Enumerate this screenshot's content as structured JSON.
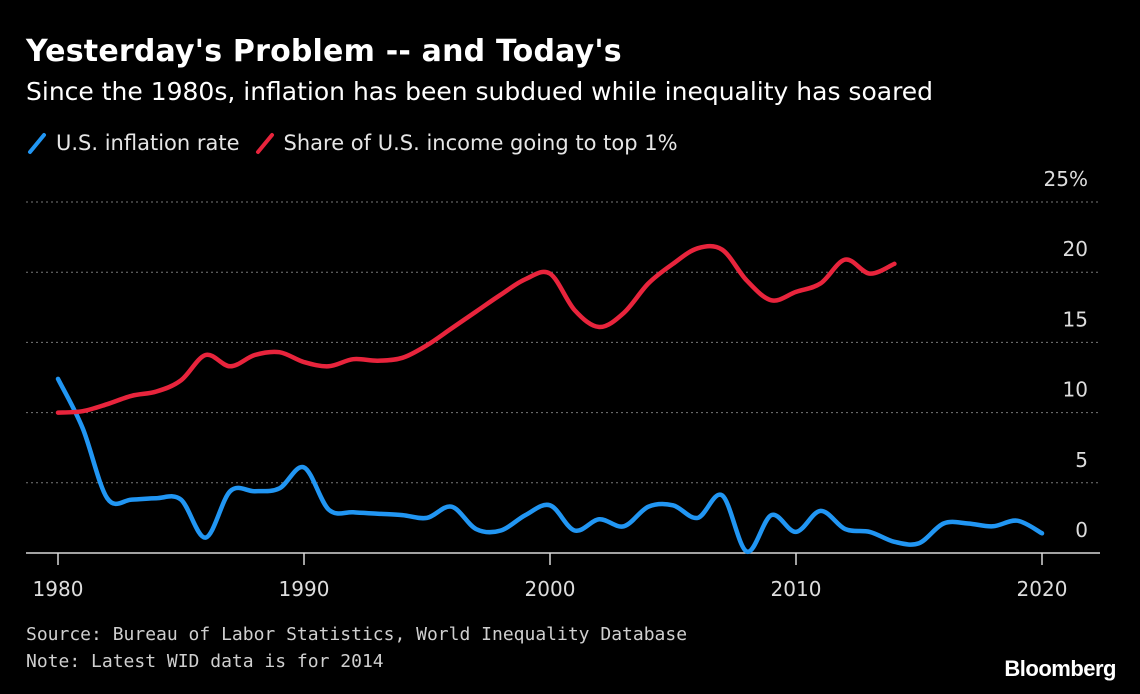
{
  "header": {
    "title": "Yesterday's Problem -- and Today's",
    "subtitle": "Since the 1980s, inflation has been subdued while inequality has soared"
  },
  "legend": {
    "items": [
      {
        "label": "U.S. inflation rate",
        "color": "#2196f3",
        "icon": "slash-line-icon"
      },
      {
        "label": "Share of U.S. income going to top 1%",
        "color": "#e8243c",
        "icon": "slash-line-icon"
      }
    ]
  },
  "footer": {
    "source": "Source: Bureau of Labor Statistics, World Inequality Database",
    "note": "Note: Latest WID data is for 2014",
    "brand": "Bloomberg"
  },
  "chart_data": {
    "type": "line",
    "title": "Yesterday's Problem -- and Today's",
    "subtitle": "Since the 1980s, inflation has been subdued while inequality has soared",
    "xlim": [
      1980,
      2022
    ],
    "ylim": [
      0,
      25
    ],
    "x_ticks": [
      "1980",
      "1990",
      "2000",
      "2010",
      "2020"
    ],
    "y_ticks": [
      "25%",
      "20",
      "15",
      "10",
      "5",
      "0"
    ],
    "y_tick_values": [
      25,
      20,
      15,
      10,
      5,
      0
    ],
    "grid": true,
    "legend_position": "top-left",
    "series": [
      {
        "name": "U.S. inflation rate",
        "color": "#2196f3",
        "x": [
          1980,
          1981,
          1982,
          1983,
          1984,
          1985,
          1986,
          1987,
          1988,
          1989,
          1990,
          1991,
          1992,
          1993,
          1994,
          1995,
          1996,
          1997,
          1998,
          1999,
          2000,
          2001,
          2002,
          2003,
          2004,
          2005,
          2006,
          2007,
          2008,
          2009,
          2010,
          2011,
          2012,
          2013,
          2014,
          2015,
          2016,
          2017,
          2018,
          2019,
          2020
        ],
        "values": [
          12.4,
          8.9,
          3.9,
          3.8,
          3.9,
          3.8,
          1.1,
          4.4,
          4.4,
          4.6,
          6.1,
          3.1,
          2.9,
          2.8,
          2.7,
          2.5,
          3.3,
          1.7,
          1.6,
          2.7,
          3.4,
          1.6,
          2.4,
          1.9,
          3.3,
          3.4,
          2.5,
          4.1,
          0.1,
          2.7,
          1.5,
          3.0,
          1.7,
          1.5,
          0.8,
          0.7,
          2.1,
          2.1,
          1.9,
          2.3,
          1.4
        ]
      },
      {
        "name": "Share of U.S. income going to top 1%",
        "color": "#e8243c",
        "x": [
          1980,
          1981,
          1982,
          1983,
          1984,
          1985,
          1986,
          1987,
          1988,
          1989,
          1990,
          1991,
          1992,
          1993,
          1994,
          1995,
          1996,
          1997,
          1998,
          1999,
          2000,
          2001,
          2002,
          2003,
          2004,
          2005,
          2006,
          2007,
          2008,
          2009,
          2010,
          2011,
          2012,
          2013,
          2014
        ],
        "values": [
          10.0,
          10.1,
          10.6,
          11.2,
          11.5,
          12.3,
          14.1,
          13.3,
          14.1,
          14.3,
          13.6,
          13.3,
          13.8,
          13.7,
          13.9,
          14.8,
          16.0,
          17.2,
          18.4,
          19.5,
          19.9,
          17.3,
          16.1,
          17.1,
          19.2,
          20.6,
          21.7,
          21.6,
          19.4,
          18.0,
          18.6,
          19.2,
          20.9,
          19.9,
          20.6
        ]
      }
    ]
  }
}
